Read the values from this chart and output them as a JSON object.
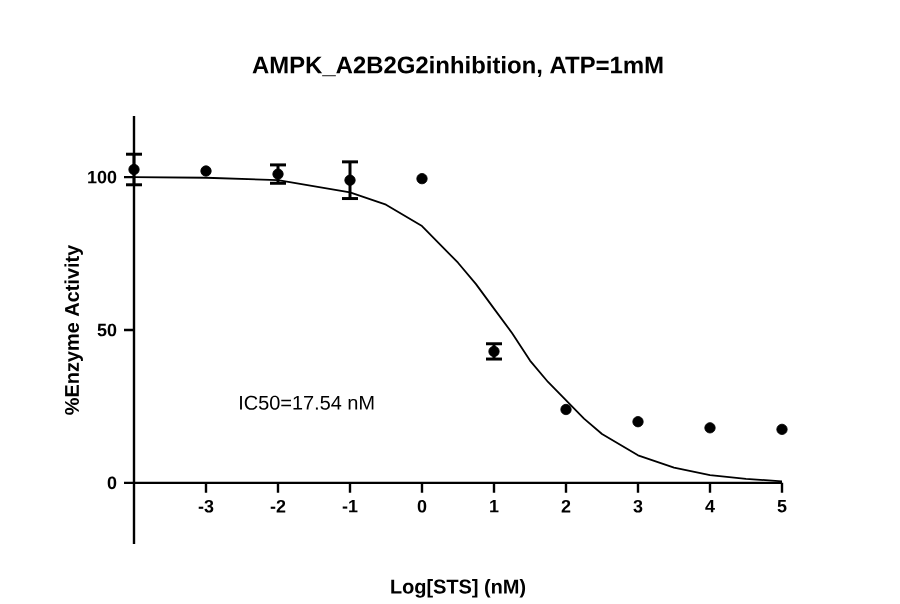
{
  "chart_data": {
    "type": "scatter",
    "title": "AMPK_A2B2G2inhibition, ATP=1mM",
    "xlabel": "Log[STS] (nM)",
    "ylabel": "%Enzyme Activity",
    "annotations": [
      "IC50=17.54 nM"
    ],
    "xlim": [
      -4,
      5
    ],
    "ylim": [
      -20,
      120
    ],
    "xticks": [
      -3,
      -2,
      -1,
      0,
      1,
      2,
      3,
      4,
      5
    ],
    "yticks": [
      0,
      50,
      100
    ],
    "grid": false,
    "series": [
      {
        "color": "#000000",
        "marker": "circle",
        "x": [
          -4,
          -3,
          -2,
          -1,
          0,
          1,
          2,
          3,
          4,
          5
        ],
        "values": [
          102.5,
          102,
          101,
          99,
          99.5,
          43,
          24,
          20,
          18,
          17.5
        ],
        "errors": [
          5,
          null,
          3,
          6,
          null,
          2.5,
          null,
          null,
          null,
          null
        ]
      },
      {
        "type": "line",
        "color": "#000000",
        "marker": "none",
        "x": [
          -4,
          -3,
          -2,
          -1,
          -0.5,
          0,
          0.25,
          0.5,
          0.75,
          1,
          1.25,
          1.5,
          1.75,
          2,
          2.25,
          2.5,
          3,
          3.5,
          4,
          4.5,
          5
        ],
        "values": [
          100,
          99.8,
          99,
          95,
          91,
          84,
          78,
          72,
          65,
          57,
          49,
          40,
          33,
          27,
          21,
          16,
          9,
          5,
          2.5,
          1.3,
          0.5
        ]
      }
    ]
  }
}
